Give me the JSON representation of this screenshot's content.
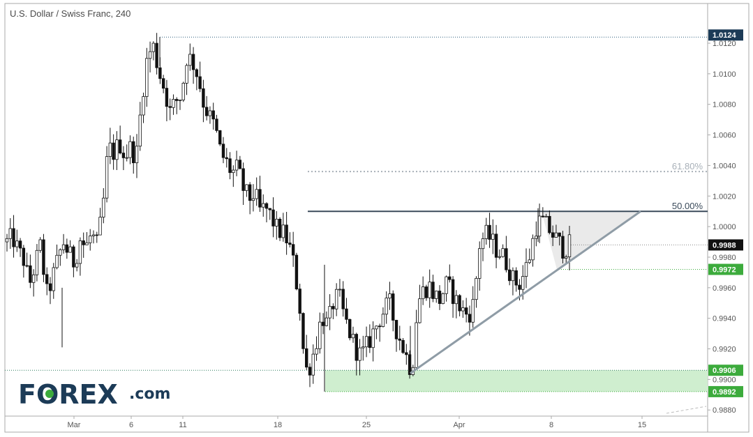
{
  "chart_data": {
    "type": "candlestick",
    "title": "U.S. Dollar / Swiss Franc, 240",
    "ylim": [
      0.9876,
      1.0146
    ],
    "x_ticks": [
      "Mar",
      "6",
      "11",
      "18",
      "25",
      "Apr",
      "8",
      "15"
    ],
    "y_ticks": [
      "1.0120",
      "1.0100",
      "1.0080",
      "1.0060",
      "1.0040",
      "1.0020",
      "1.0000",
      "0.9980",
      "0.9960",
      "0.9940",
      "0.9920",
      "0.9900",
      "0.9880"
    ],
    "price_path": [
      [
        "",
        0.999
      ],
      [
        "",
        0.9993
      ],
      [
        "",
        0.9984
      ],
      [
        "",
        0.9978
      ],
      [
        "",
        0.9962
      ],
      [
        "",
        0.9975
      ],
      [
        "",
        0.9988
      ],
      [
        "",
        0.9955
      ],
      [
        "",
        0.9965
      ],
      [
        "",
        0.9978
      ],
      [
        "",
        0.999
      ],
      [
        "",
        0.9982
      ],
      [
        "",
        0.9976
      ],
      [
        "",
        0.9992
      ],
      [
        "",
        0.9986
      ],
      [
        "",
        0.9995
      ],
      [
        "",
        0.9988
      ],
      [
        "",
        1.001
      ],
      [
        "",
        1.0052
      ],
      [
        "",
        1.0048
      ],
      [
        "",
        1.0055
      ],
      [
        "",
        1.0046
      ],
      [
        "",
        1.0052
      ],
      [
        "",
        1.0045
      ],
      [
        "",
        1.0085
      ],
      [
        "",
        1.0112
      ],
      [
        "",
        1.0118
      ],
      [
        "",
        1.0102
      ],
      [
        "",
        1.009
      ],
      [
        "",
        1.0075
      ],
      [
        "",
        1.0082
      ],
      [
        "",
        1.0086
      ],
      [
        "",
        1.0112
      ],
      [
        "",
        1.0108
      ],
      [
        "",
        1.0098
      ],
      [
        "",
        1.008
      ],
      [
        "",
        1.0072
      ],
      [
        "",
        1.0065
      ],
      [
        "",
        1.0048
      ],
      [
        "",
        1.0042
      ],
      [
        "",
        1.0035
      ],
      [
        "",
        1.0038
      ],
      [
        "",
        1.0025
      ],
      [
        "",
        1.0018
      ],
      [
        "",
        1.0022
      ],
      [
        "",
        1.001
      ],
      [
        "",
        1.0012
      ],
      [
        "",
        1.0006
      ],
      [
        "",
        0.9998
      ],
      [
        "",
        0.9996
      ],
      [
        "",
        0.999
      ],
      [
        "",
        0.9975
      ],
      [
        "",
        0.995
      ],
      [
        "",
        0.9905
      ],
      [
        "",
        0.991
      ],
      [
        "",
        0.9925
      ],
      [
        "",
        0.9942
      ],
      [
        "",
        0.9935
      ],
      [
        "",
        0.995
      ],
      [
        "",
        0.9955
      ],
      [
        "",
        0.994
      ],
      [
        "",
        0.993
      ],
      [
        "",
        0.992
      ],
      [
        "",
        0.9915
      ],
      [
        "",
        0.9922
      ],
      [
        "",
        0.993
      ],
      [
        "",
        0.9938
      ],
      [
        "",
        0.9945
      ],
      [
        "",
        0.995
      ],
      [
        "",
        0.9935
      ],
      [
        "",
        0.9925
      ],
      [
        "",
        0.9915
      ],
      [
        "",
        0.9905
      ],
      [
        "",
        0.995
      ],
      [
        "",
        0.9958
      ],
      [
        "",
        0.9962
      ],
      [
        "",
        0.9955
      ],
      [
        "",
        0.9952
      ],
      [
        "",
        0.9962
      ],
      [
        "",
        0.9958
      ],
      [
        "",
        0.995
      ],
      [
        "",
        0.9945
      ],
      [
        "",
        0.9942
      ],
      [
        "",
        0.995
      ],
      [
        "",
        0.9988
      ],
      [
        "",
        0.9995
      ],
      [
        "",
        0.9992
      ],
      [
        "",
        0.9985
      ],
      [
        "",
        0.9982
      ],
      [
        "",
        0.9975
      ],
      [
        "",
        0.9965
      ],
      [
        "",
        0.9962
      ],
      [
        "",
        0.997
      ],
      [
        "",
        0.9982
      ],
      [
        "",
        1.0
      ],
      [
        "",
        1.0004
      ],
      [
        "",
        1.0
      ],
      [
        "",
        0.9995
      ],
      [
        "",
        0.999
      ],
      [
        "",
        0.9985
      ],
      [
        "",
        0.9988
      ]
    ],
    "price_tags": [
      {
        "label": "1.0124",
        "value": 1.0124,
        "color": "#1c3b57",
        "text_color": "#ffffff"
      },
      {
        "label": "0.9988",
        "value": 0.9988,
        "color": "#111111",
        "text_color": "#ffffff"
      },
      {
        "label": "0.9972",
        "value": 0.9972,
        "color": "#3cab3c",
        "text_color": "#ffffff"
      },
      {
        "label": "0.9906",
        "value": 0.9906,
        "color": "#3cab3c",
        "text_color": "#ffffff"
      },
      {
        "label": "0.9892",
        "value": 0.9892,
        "color": "#3cab3c",
        "text_color": "#ffffff"
      }
    ],
    "fib_levels": [
      {
        "label": "61.80%",
        "value": 1.0036,
        "color": "#a8b0b8"
      },
      {
        "label": "50.00%",
        "value": 1.001,
        "color": "#3a4a5a"
      }
    ],
    "support_zone": {
      "top": 0.9906,
      "bottom": 0.9892,
      "color": "#cfeecf"
    },
    "trendline": {
      "start": 0.9904,
      "end": 1.001
    },
    "triangle_top": 1.001,
    "triangle_shade": "#e8e8e8",
    "colors": {
      "candle": "#111111",
      "trendline": "#8f9ca6",
      "dotted_blue": "#2a5c7a"
    }
  },
  "logo": {
    "main": "FOREX",
    "suffix": ".com",
    "text_color": "#1c3b57",
    "accent": "#3cab3c"
  }
}
